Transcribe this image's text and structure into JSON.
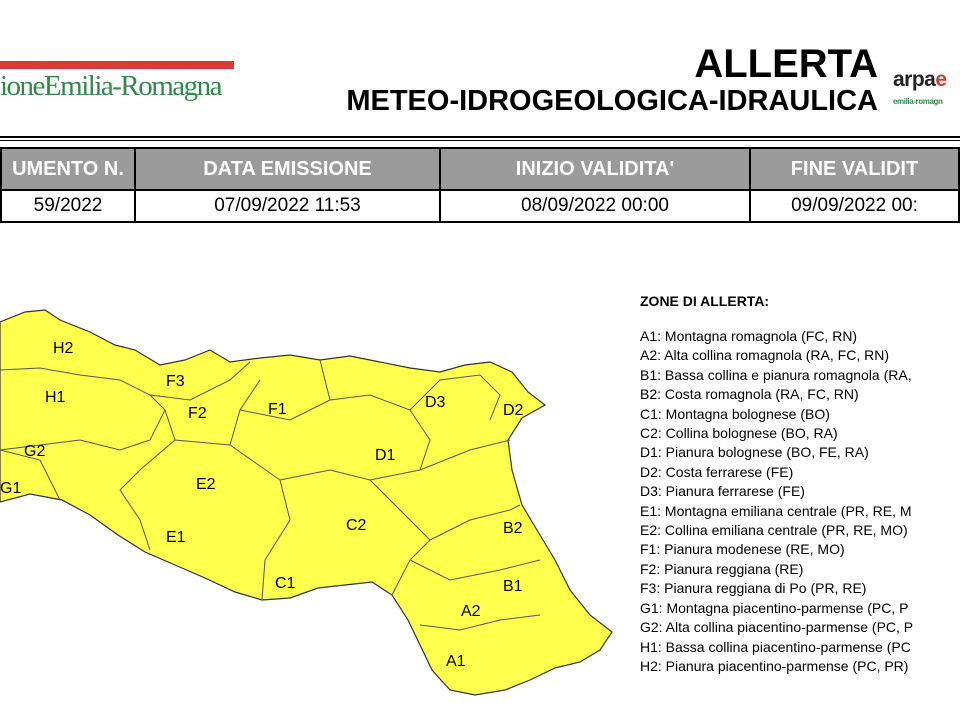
{
  "header": {
    "region_logo": "ioneEmilia-Romagna",
    "title_line1": "ALLERTA",
    "title_line2": "METEO-IDROGEOLOGICA-IDRAULICA",
    "arpae_logo": "arpae",
    "arpae_sub": "emilia-romagn"
  },
  "table": {
    "headers": [
      "UMENTO N.",
      "DATA EMISSIONE",
      "INIZIO VALIDITA'",
      "FINE VALIDIT"
    ],
    "values": [
      "59/2022",
      "07/09/2022 11:53",
      "08/09/2022 00:00",
      "09/09/2022 00:"
    ]
  },
  "legend": {
    "title": "ZONE DI ALLERTA:",
    "items": [
      "A1: Montagna romagnola (FC, RN)",
      "A2: Alta collina romagnola (RA, FC, RN)",
      "B1: Bassa collina e pianura romagnola (RA,",
      "B2: Costa romagnola (RA, FC, RN)",
      "C1: Montagna bolognese (BO)",
      "C2: Collina bolognese (BO, RA)",
      "D1: Pianura bolognese (BO, FE, RA)",
      "D2: Costa ferrarese (FE)",
      "D3: Pianura ferrarese (FE)",
      "E1: Montagna emiliana centrale (PR, RE, M",
      "E2: Collina emiliana centrale (PR, RE, MO)",
      "F1: Pianura modenese (RE, MO)",
      "F2: Pianura reggiana (RE)",
      "F3: Pianura reggiana di Po (PR, RE)",
      "G1: Montagna piacentino-parmense (PC, P",
      "G2: Alta collina piacentino-parmense (PC, P",
      "H1: Bassa collina piacentino-parmense (PC",
      "H2: Pianura piacentino-parmense (PC, PR)"
    ]
  },
  "map": {
    "fill_color": "#ffff4d",
    "zones": [
      "H2",
      "H1",
      "G2",
      "G1",
      "F3",
      "F2",
      "F1",
      "E2",
      "E1",
      "D3",
      "D2",
      "D1",
      "C2",
      "C1",
      "B2",
      "B1",
      "A2",
      "A1"
    ]
  }
}
